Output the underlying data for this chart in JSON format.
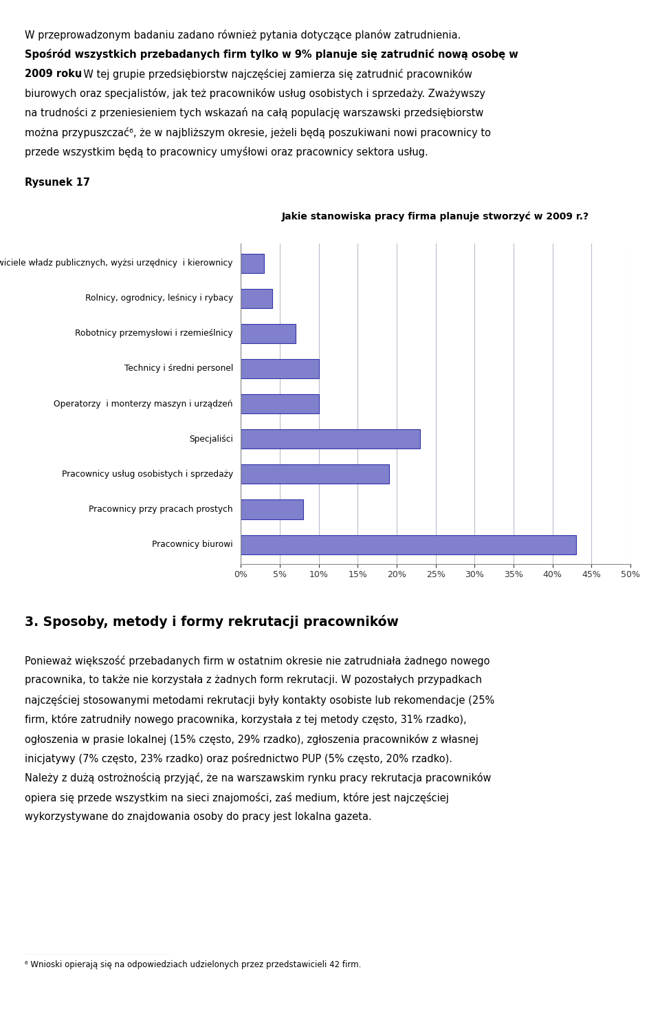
{
  "title": "Jakie stanowiska pracy firma planuje stworzyć w 2009 r.?",
  "categories": [
    "Przedstawiciele władz publicznych, wyżsi urzędnicy  i kierownicy",
    "Rolnicy, ogrodnicy, leśnicy i rybacy",
    "Robotnicy przemysłowi i rzemieślnicy",
    "Technicy i średni personel",
    "Operatorzy  i monterzy maszyn i urządzeń",
    "Specjaliści",
    "Pracownicy usług osobistych i sprzedaży",
    "Pracownicy przy pracach prostych",
    "Pracownicy biurowi"
  ],
  "values": [
    3,
    4,
    7,
    10,
    10,
    23,
    19,
    8,
    43
  ],
  "bar_color": "#8080cc",
  "bar_edge_color": "#3333aa",
  "xlim": [
    0,
    50
  ],
  "xticks": [
    0,
    5,
    10,
    15,
    20,
    25,
    30,
    35,
    40,
    45,
    50
  ],
  "xtick_labels": [
    "0%",
    "5%",
    "10%",
    "15%",
    "20%",
    "25%",
    "30%",
    "35%",
    "40%",
    "45%",
    "50%"
  ],
  "grid_color": "#bbbbcc",
  "background_color": "#ffffff",
  "text_color": "#000000",
  "rysunek_label": "Rysunek 17",
  "section3_title": "3. Sposoby, metody i formy rekrutacji pracowników",
  "footnote": "6 Wnioski opierają się na odpowiedziach udzielonych przez przedstawicieli 42 firm.",
  "para1_line1": "W przeprowadzonym badaniu zadano również pytania dotyczące planów zatrudnienia.",
  "para1_line2_bold": "Spośród wszystkich przebadanych firm tylko w 9% planuje się zatrudnić nową osobę w",
  "para1_line3_bold": "2009 roku",
  "para1_line3_normal": ". W tej grupie przedsiębiorstw najczęściej zamierza się zatrudnić pracowników",
  "para1_line4": "biurowych oraz specjalistów, jak też pracowników usług osobistych i sprzedaży. Zważywszy",
  "para1_line5": "na trudności z przeniesieniem tych wskazań na całą populację warszawski przedsiębiorstw",
  "para1_line6": "można przypuszczać⁶, że w najbliższym okresie, jeżeli będą poszukiwani nowi pracownicy to",
  "para1_line7": "przede wszystkim będą to pracownicy umyśłowi oraz pracownicy sektora usług.",
  "s3_line1": "Ponieważ większość przebadanych firm w ostatnim okresie nie zatrudniała żadnego nowego",
  "s3_line2": "pracownika, to także nie korzystała z żadnych form rekrutacji. W pozostałych przypadkach",
  "s3_line3": "najczęściej stosowanymi metodami rekrutacji były kontakty osobiste lub rekomendacje (25%",
  "s3_line4": "firm, które zatrudniły nowego pracownika, korzystała z tej metody często, 31% rzadko),",
  "s3_line5": "ogłoszenia w prasie lokalnej (15% często, 29% rzadko), zgłoszenia pracowników z własnej",
  "s3_line6": "inicjatywy (7% często, 23% rzadko) oraz pośrednictwo PUP (5% często, 20% rzadko).",
  "s3_line7": "Należy z dużą ostrożnością przyjąć, że na warszawskim rynku pracy rekrutacja pracowników",
  "s3_line8": "opiera się przede wszystkim na sieci znajomości, zaś medium, które jest najczęściej",
  "s3_line9": "wykorzystywane do znajdowania osoby do pracy jest lokalna gazeta."
}
